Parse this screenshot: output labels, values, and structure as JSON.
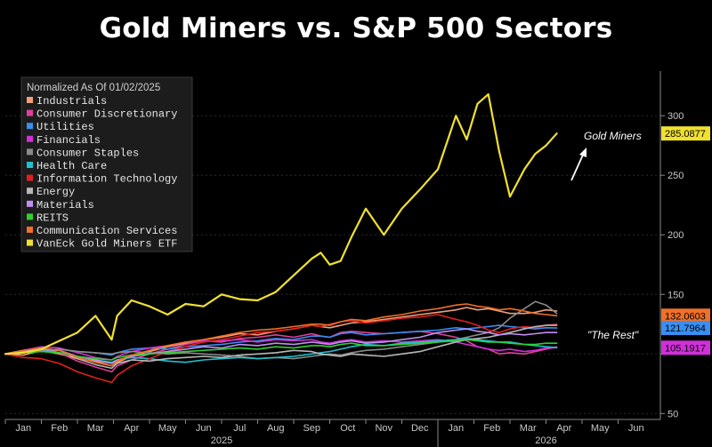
{
  "page_title": "Gold Miners vs. S&P 500 Sectors",
  "chart_data": {
    "type": "line",
    "title": "Gold Miners vs. S&P 500 Sectors",
    "legend_title": "Normalized As Of 01/02/2025",
    "legend_position": "top-left",
    "xlabel": "",
    "ylabel": "",
    "ylim": [
      45,
      330
    ],
    "y_ticks": [
      50,
      100,
      150,
      200,
      250,
      300
    ],
    "y_tick_labels": [
      "50",
      "",
      "150",
      "200",
      "250",
      "300"
    ],
    "x_ticks": [
      "Jan",
      "Feb",
      "Mar",
      "Apr",
      "May",
      "Jun",
      "Jul",
      "Aug",
      "Sep",
      "Oct",
      "Nov",
      "Dec",
      "Jan",
      "Feb",
      "Mar",
      "Apr",
      "May",
      "Jun"
    ],
    "year_labels": [
      "2025",
      "2026"
    ],
    "x": [
      0,
      0.5,
      1,
      1.5,
      2,
      2.5,
      2.95,
      3.1,
      3.5,
      4,
      4.5,
      5,
      5.5,
      6,
      6.5,
      7,
      7.5,
      8,
      8.5,
      8.75,
      9,
      9.3,
      9.6,
      10,
      10.5,
      11,
      11.5,
      12,
      12.5,
      12.8,
      13.1,
      13.4,
      13.7,
      14,
      14.4,
      14.7,
      15,
      15.3
    ],
    "series": [
      {
        "name": "Industrials",
        "color": "#f0a078",
        "values": [
          100,
          99,
          103,
          100,
          96,
          94,
          90,
          93,
          98,
          102,
          106,
          109,
          112,
          114,
          117,
          116,
          119,
          121,
          124,
          123,
          122,
          124,
          126,
          127,
          129,
          131,
          133,
          135,
          137,
          139,
          137,
          138,
          136,
          134,
          134,
          135,
          137,
          136
        ]
      },
      {
        "name": "Consumer Discretionary",
        "color": "#e0409a",
        "values": [
          100,
          103,
          105,
          101,
          94,
          89,
          85,
          90,
          95,
          100,
          104,
          108,
          111,
          110,
          113,
          114,
          116,
          114,
          117,
          115,
          114,
          118,
          119,
          118,
          117,
          118,
          119,
          117,
          114,
          111,
          106,
          104,
          100,
          101,
          100,
          102,
          104,
          105.9
        ]
      },
      {
        "name": "Utilities",
        "color": "#3a8ef0",
        "values": [
          100,
          101,
          103,
          104,
          102,
          101,
          99,
          101,
          104,
          105,
          104,
          106,
          107,
          108,
          110,
          111,
          113,
          112,
          115,
          115,
          114,
          117,
          118,
          116,
          117,
          118,
          119,
          120,
          122,
          121,
          122,
          123,
          124,
          123,
          122,
          121,
          122,
          121.8
        ]
      },
      {
        "name": "Financials",
        "color": "#d030d8",
        "values": [
          100,
          103,
          106,
          105,
          101,
          97,
          95,
          98,
          102,
          105,
          107,
          110,
          111,
          111,
          112,
          110,
          112,
          111,
          112,
          110,
          109,
          111,
          112,
          110,
          111,
          110,
          111,
          112,
          110,
          108,
          106,
          104,
          103,
          104,
          102,
          103,
          105,
          105.2
        ]
      },
      {
        "name": "Consumer Staples",
        "color": "#8a8a8a",
        "values": [
          100,
          102,
          103,
          104,
          102,
          101,
          100,
          101,
          102,
          101,
          100,
          101,
          100,
          99,
          98,
          96,
          97,
          96,
          98,
          99,
          100,
          99,
          101,
          103,
          104,
          106,
          108,
          110,
          112,
          114,
          116,
          118,
          122,
          130,
          138,
          144,
          141,
          134
        ]
      },
      {
        "name": "Health Care",
        "color": "#20c0d0",
        "values": [
          100,
          103,
          104,
          101,
          98,
          95,
          93,
          95,
          97,
          96,
          94,
          93,
          95,
          96,
          97,
          96,
          97,
          98,
          100,
          101,
          102,
          104,
          106,
          108,
          107,
          109,
          110,
          111,
          112,
          113,
          112,
          111,
          110,
          110,
          108,
          107,
          106,
          105.4
        ]
      },
      {
        "name": "Information Technology",
        "color": "#e02020",
        "values": [
          100,
          97,
          96,
          92,
          85,
          80,
          76,
          82,
          90,
          96,
          102,
          106,
          110,
          112,
          115,
          118,
          119,
          121,
          124,
          123,
          125,
          127,
          128,
          126,
          128,
          130,
          131,
          133,
          129,
          127,
          124,
          120,
          118,
          121,
          123,
          122,
          124,
          125
        ]
      },
      {
        "name": "Energy",
        "color": "#b8b8b8",
        "values": [
          100,
          103,
          104,
          103,
          96,
          91,
          88,
          92,
          95,
          94,
          96,
          97,
          98,
          97,
          99,
          100,
          101,
          103,
          102,
          100,
          99,
          98,
          100,
          99,
          98,
          100,
          102,
          106,
          110,
          112,
          113,
          114,
          116,
          118,
          121,
          123,
          124,
          124
        ]
      },
      {
        "name": "Materials",
        "color": "#c090f0",
        "values": [
          100,
          102,
          104,
          103,
          98,
          95,
          92,
          95,
          98,
          100,
          102,
          104,
          106,
          105,
          108,
          107,
          109,
          108,
          110,
          109,
          108,
          110,
          111,
          109,
          110,
          112,
          114,
          118,
          120,
          121,
          119,
          118,
          116,
          117,
          116,
          117,
          118,
          118
        ]
      },
      {
        "name": "REITS",
        "color": "#30d030",
        "values": [
          100,
          101,
          102,
          101,
          98,
          96,
          95,
          97,
          99,
          100,
          101,
          102,
          103,
          104,
          105,
          104,
          106,
          105,
          107,
          107,
          106,
          108,
          109,
          107,
          107,
          108,
          109,
          110,
          111,
          112,
          111,
          110,
          110,
          109,
          108,
          108,
          109,
          109
        ]
      },
      {
        "name": "Communication Services",
        "color": "#f07028",
        "values": [
          100,
          103,
          105,
          103,
          97,
          93,
          90,
          94,
          99,
          103,
          107,
          110,
          112,
          115,
          118,
          120,
          121,
          123,
          125,
          125,
          124,
          127,
          129,
          128,
          131,
          133,
          136,
          138,
          141,
          142,
          140,
          139,
          137,
          138,
          136,
          134,
          133,
          132.1
        ]
      },
      {
        "name": "VanEck Gold Miners ETF",
        "color": "#f0e030",
        "values": [
          100,
          101,
          104,
          111,
          118,
          132,
          112,
          132,
          145,
          140,
          133,
          142,
          140,
          150,
          146,
          145,
          152,
          166,
          180,
          185,
          175,
          178,
          198,
          222,
          200,
          222,
          238,
          255,
          300,
          280,
          310,
          318,
          270,
          232,
          255,
          268,
          275,
          285.1
        ]
      }
    ],
    "last_value_labels": [
      {
        "series": "Communication Services",
        "text": "132.0603",
        "bg": "#f07028"
      },
      {
        "series": "Utilities",
        "text": "121.7964",
        "bg": "#3a8ef0"
      },
      {
        "series": "Financials",
        "text": "105.1917",
        "bg": "#d030d8"
      },
      {
        "series": "VanEck Gold Miners ETF",
        "text": "285.0877",
        "bg": "#f0e030"
      }
    ],
    "annotations": [
      {
        "text": "Gold Miners"
      },
      {
        "text": "\"The Rest\""
      }
    ]
  }
}
